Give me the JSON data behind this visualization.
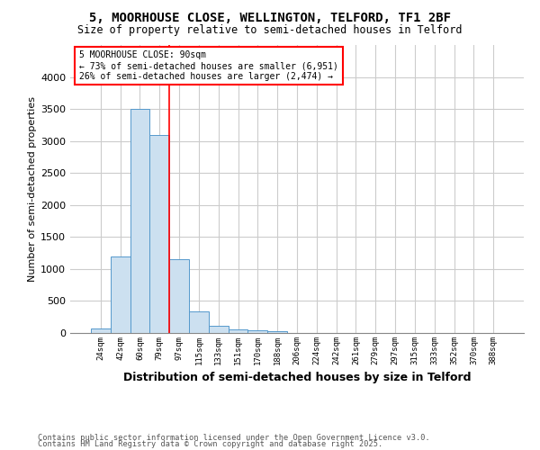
{
  "title_line1": "5, MOORHOUSE CLOSE, WELLINGTON, TELFORD, TF1 2BF",
  "title_line2": "Size of property relative to semi-detached houses in Telford",
  "xlabel": "Distribution of semi-detached houses by size in Telford",
  "ylabel": "Number of semi-detached properties",
  "categories": [
    "24sqm",
    "42sqm",
    "60sqm",
    "79sqm",
    "97sqm",
    "115sqm",
    "133sqm",
    "151sqm",
    "170sqm",
    "188sqm",
    "206sqm",
    "224sqm",
    "242sqm",
    "261sqm",
    "279sqm",
    "297sqm",
    "315sqm",
    "333sqm",
    "352sqm",
    "370sqm",
    "388sqm"
  ],
  "values": [
    75,
    1200,
    3500,
    3100,
    1150,
    340,
    110,
    55,
    40,
    35,
    0,
    0,
    0,
    0,
    0,
    0,
    0,
    0,
    0,
    0,
    0
  ],
  "bar_color": "#cce0f0",
  "bar_edge_color": "#5599cc",
  "property_line_x": 3.5,
  "annotation_title": "5 MOORHOUSE CLOSE: 90sqm",
  "annotation_line1": "← 73% of semi-detached houses are smaller (6,951)",
  "annotation_line2": "26% of semi-detached houses are larger (2,474) →",
  "ylim": [
    0,
    4500
  ],
  "yticks": [
    0,
    500,
    1000,
    1500,
    2000,
    2500,
    3000,
    3500,
    4000
  ],
  "footnote_line1": "Contains HM Land Registry data © Crown copyright and database right 2025.",
  "footnote_line2": "Contains public sector information licensed under the Open Government Licence v3.0.",
  "background_color": "#ffffff",
  "grid_color": "#cccccc"
}
